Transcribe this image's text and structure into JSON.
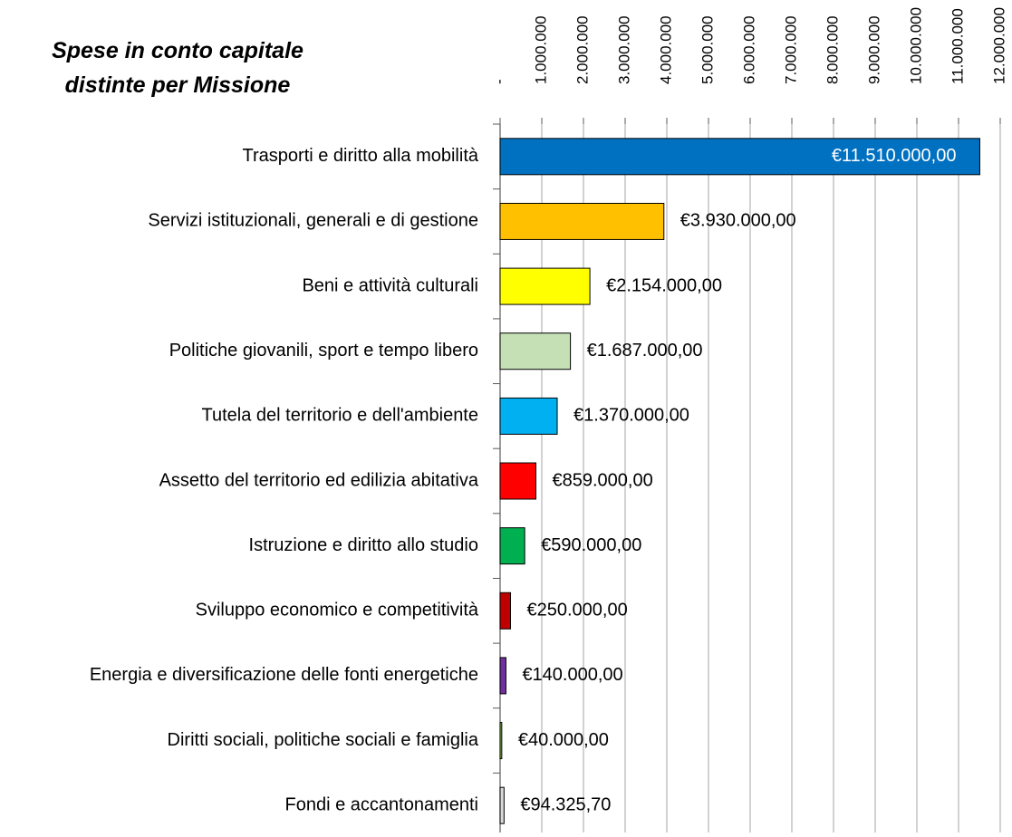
{
  "chart_data": {
    "type": "bar",
    "orientation": "horizontal",
    "title": [
      "Spese in conto capitale",
      "distinte per Missione"
    ],
    "categories": [
      "Trasporti e diritto alla mobilità",
      "Servizi istituzionali, generali e di gestione",
      "Beni e attività culturali",
      "Politiche giovanili, sport e tempo libero",
      "Tutela del territorio e dell'ambiente",
      "Assetto del territorio ed edilizia abitativa",
      "Istruzione e diritto allo studio",
      "Sviluppo economico e competitività",
      "Energia e diversificazione delle fonti energetiche",
      "Diritti sociali, politiche sociali e famiglia",
      "Fondi e accantonamenti"
    ],
    "values": [
      11510000,
      3930000,
      2154000,
      1687000,
      1370000,
      859000,
      590000,
      250000,
      140000,
      40000,
      94325.7
    ],
    "value_labels": [
      "€11.510.000,00",
      "€3.930.000,00",
      "€2.154.000,00",
      "€1.687.000,00",
      "€1.370.000,00",
      "€859.000,00",
      "€590.000,00",
      "€250.000,00",
      "€140.000,00",
      "€40.000,00",
      "€94.325,70"
    ],
    "colors": [
      "#0070c0",
      "#ffc000",
      "#ffff00",
      "#c5e0b4",
      "#00b0f0",
      "#ff0000",
      "#00b050",
      "#c00000",
      "#7030a0",
      "#92d050",
      "#d9d9d9"
    ],
    "xlim": [
      0,
      12000000
    ],
    "xticks": [
      {
        "value": 0,
        "label": "-"
      },
      {
        "value": 1000000,
        "label": "1.000.000"
      },
      {
        "value": 2000000,
        "label": "2.000.000"
      },
      {
        "value": 3000000,
        "label": "3.000.000"
      },
      {
        "value": 4000000,
        "label": "4.000.000"
      },
      {
        "value": 5000000,
        "label": "5.000.000"
      },
      {
        "value": 6000000,
        "label": "6.000.000"
      },
      {
        "value": 7000000,
        "label": "7.000.000"
      },
      {
        "value": 8000000,
        "label": "8.000.000"
      },
      {
        "value": 9000000,
        "label": "9.000.000"
      },
      {
        "value": 10000000,
        "label": "10.000.000"
      },
      {
        "value": 11000000,
        "label": "11.000.000"
      },
      {
        "value": 12000000,
        "label": "12.000.000"
      }
    ],
    "grid": true
  }
}
